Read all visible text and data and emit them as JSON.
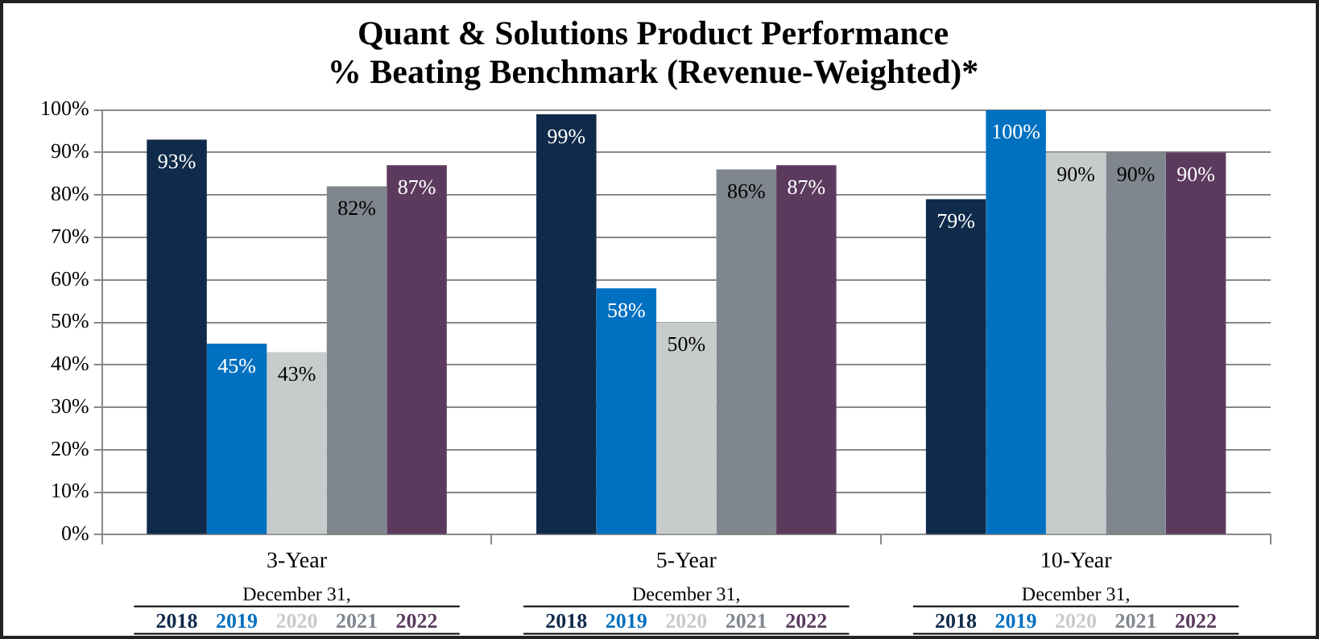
{
  "chart_data": {
    "type": "bar",
    "title": [
      "Quant & Solutions Product Performance",
      "% Beating Benchmark (Revenue-Weighted)*"
    ],
    "categories": [
      "3-Year",
      "5-Year",
      "10-Year"
    ],
    "legend_title": "December 31,",
    "legend": "bottom",
    "grid": "y",
    "ylim": [
      0,
      100
    ],
    "yticks": [
      {
        "value": 0,
        "label": "0%"
      },
      {
        "value": 10,
        "label": "10%"
      },
      {
        "value": 20,
        "label": "20%"
      },
      {
        "value": 30,
        "label": "30%"
      },
      {
        "value": 40,
        "label": "40%"
      },
      {
        "value": 50,
        "label": "50%"
      },
      {
        "value": 60,
        "label": "60%"
      },
      {
        "value": 70,
        "label": "70%"
      },
      {
        "value": 80,
        "label": "80%"
      },
      {
        "value": 90,
        "label": "90%"
      },
      {
        "value": 100,
        "label": "100%"
      }
    ],
    "series": [
      {
        "name": "2018",
        "color": "#0f2a4a",
        "values": [
          93,
          99,
          79
        ],
        "value_labels": [
          "93%",
          "99%",
          "79%"
        ]
      },
      {
        "name": "2019",
        "color": "#0070c0",
        "values": [
          45,
          58,
          100
        ],
        "value_labels": [
          "45%",
          "58%",
          "100%"
        ]
      },
      {
        "name": "2020",
        "color": "#c8cbcb",
        "values": [
          43,
          50,
          90
        ],
        "value_labels": [
          "43%",
          "50%",
          "90%"
        ]
      },
      {
        "name": "2021",
        "color": "#7f868e",
        "values": [
          82,
          86,
          90
        ],
        "value_labels": [
          "82%",
          "86%",
          "90%"
        ]
      },
      {
        "name": "2022",
        "color": "#5c3a5e",
        "values": [
          87,
          87,
          90
        ],
        "value_labels": [
          "87%",
          "87%",
          "90%"
        ]
      }
    ]
  }
}
